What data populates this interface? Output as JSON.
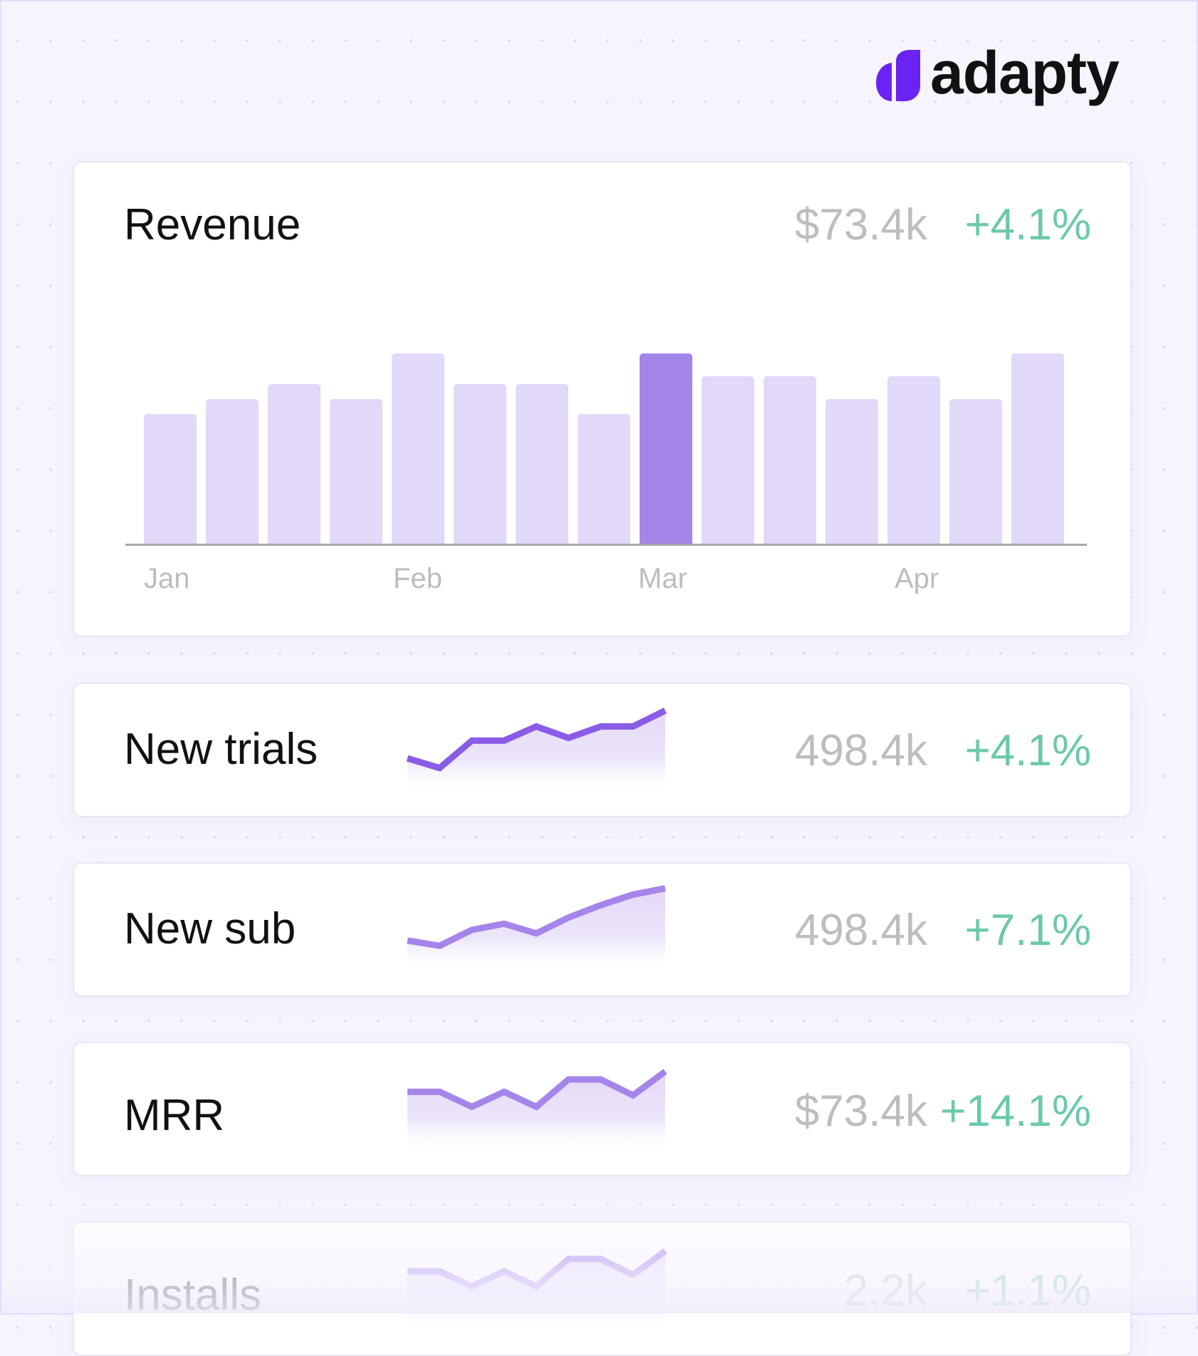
{
  "brand": {
    "name": "adapty",
    "color": "#6a22f5"
  },
  "colors": {
    "accent_bar": "#a385e8",
    "bar": "#e2d8f8",
    "positive": "#6cc9a8",
    "muted": "#bdbdbd",
    "line_dark": "#8a5ce6",
    "line": "#a585ea"
  },
  "revenue": {
    "title": "Revenue",
    "value": "$73.4k",
    "change": "+4.1%",
    "chart_data": {
      "type": "bar",
      "values": [
        68,
        76,
        84,
        76,
        100,
        84,
        84,
        68,
        100,
        88,
        88,
        76,
        88,
        76,
        100
      ],
      "highlight_index": 8,
      "tick_labels": [
        "Jan",
        "Feb",
        "Mar",
        "Apr"
      ],
      "grid": false
    }
  },
  "metrics": [
    {
      "title": "New trials",
      "value": "498.4k",
      "change": "+4.1%",
      "chart_data": {
        "type": "area",
        "values": [
          41,
          30,
          61,
          61,
          77,
          64,
          77,
          77,
          95
        ]
      }
    },
    {
      "title": "New sub",
      "value": "498.4k",
      "change": "+7.1%",
      "chart_data": {
        "type": "area",
        "values": [
          38,
          32,
          50,
          57,
          46,
          64,
          78,
          90,
          97
        ]
      }
    },
    {
      "title": "MRR",
      "value": "$73.4k",
      "change": "+14.1%",
      "chart_data": {
        "type": "area",
        "values": [
          70,
          70,
          53,
          70,
          53,
          84,
          84,
          66,
          93
        ]
      }
    },
    {
      "title": "Installs",
      "value": "2.2k",
      "change": "+1.1%",
      "chart_data": {
        "type": "area",
        "values": [
          70,
          70,
          53,
          70,
          53,
          84,
          84,
          66,
          93
        ]
      }
    }
  ]
}
